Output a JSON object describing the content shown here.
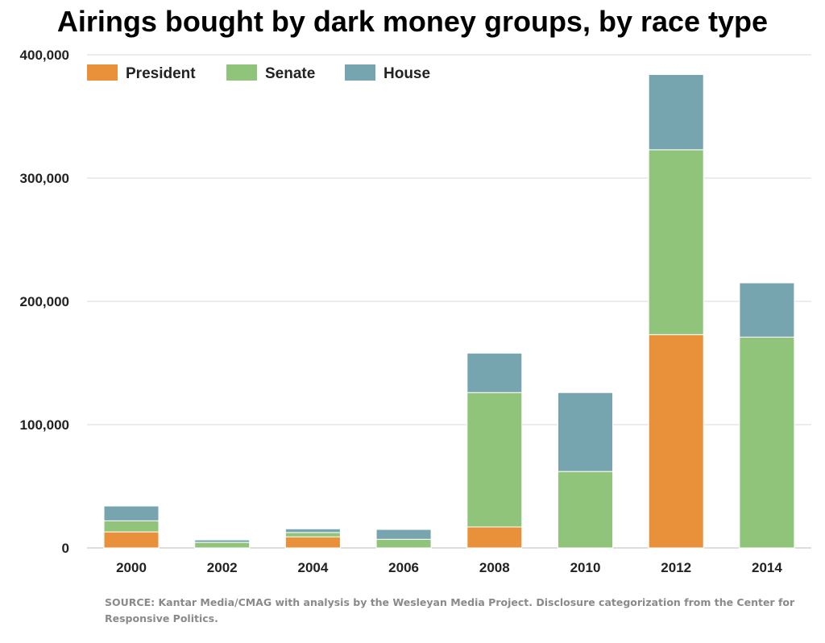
{
  "chart_data": {
    "type": "bar",
    "stacked": true,
    "title": "Airings bought by dark money groups, by race type",
    "xlabel": "",
    "ylabel": "",
    "categories": [
      "2000",
      "2002",
      "2004",
      "2006",
      "2008",
      "2010",
      "2012",
      "2014"
    ],
    "series": [
      {
        "name": "President",
        "color": "#e8913a",
        "values": [
          13000,
          0,
          9000,
          0,
          17000,
          0,
          173000,
          0
        ]
      },
      {
        "name": "Senate",
        "color": "#90c47b",
        "values": [
          9000,
          4500,
          3500,
          7000,
          109000,
          62000,
          150000,
          171000
        ]
      },
      {
        "name": "House",
        "color": "#77a5af",
        "values": [
          12000,
          2000,
          3000,
          8000,
          32000,
          64000,
          61000,
          44000
        ]
      }
    ],
    "ylim": [
      0,
      400000
    ],
    "yticks": [
      0,
      100000,
      200000,
      300000,
      400000
    ],
    "ytick_labels": [
      "0",
      "100,000",
      "200,000",
      "300,000",
      "400,000"
    ],
    "grid": true,
    "legend_position": "top-left"
  },
  "source_note": "SOURCE: Kantar Media/CMAG with analysis by the Wesleyan Media Project. Disclosure categorization from the Center for Responsive Politics."
}
